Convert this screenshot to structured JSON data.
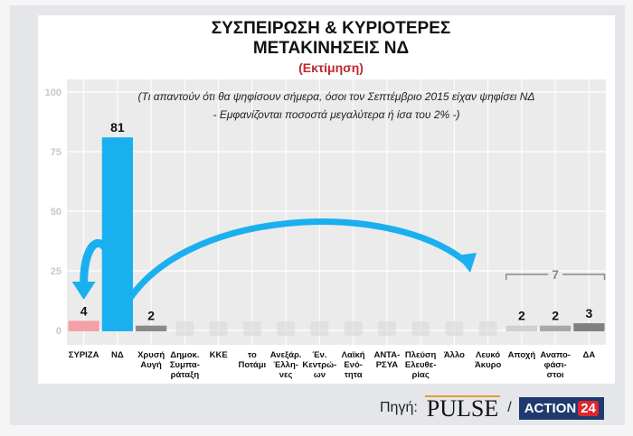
{
  "chart_data": {
    "type": "bar",
    "title": "ΣΥΣΠΕΙΡΩΣΗ & ΚΥΡΙΟΤΕΡΕΣ\nΜΕΤΑΚΙΝΗΣΕΙΣ ΝΔ",
    "title_lines": [
      "ΣΥΣΠΕΙΡΩΣΗ & ΚΥΡΙΟΤΕΡΕΣ",
      "ΜΕΤΑΚΙΝΗΣΕΙΣ ΝΔ"
    ],
    "subtitle": "(Εκτίμηση)",
    "note_lines": [
      "(Τι απαντούν ότι θα ψηφίσουν σήμερα, όσοι τον Σεπτέμβριο 2015 είχαν ψηφίσει ΝΔ",
      "- Εμφανίζονται ποσοστά μεγαλύτερα ή ίσα του 2% -)"
    ],
    "ylim": [
      0,
      100
    ],
    "yticks": [
      0,
      25,
      50,
      75,
      100
    ],
    "grid": true,
    "categories": [
      [
        "ΣΥΡΙΖΑ"
      ],
      [
        "ΝΔ"
      ],
      [
        "Χρυσή",
        "Αυγή"
      ],
      [
        "Δημοκ.",
        "Συμπα-",
        "ράταξη"
      ],
      [
        "ΚΚΕ"
      ],
      [
        "το",
        "Ποτάμι"
      ],
      [
        "Ανεξάρ.",
        "Έλλη-",
        "νες"
      ],
      [
        "Έν.",
        "Κεντρώ-",
        "ων"
      ],
      [
        "Λαϊκή",
        "Ενό-",
        "τητα"
      ],
      [
        "ΑΝΤΑ-",
        "ΡΣΥΑ"
      ],
      [
        "Πλεύση",
        "Ελευθε-",
        "ρίας"
      ],
      [
        "Άλλο"
      ],
      [
        "Λευκό",
        "Άκυρο"
      ],
      [
        "Αποχή"
      ],
      [
        "Αναπο-",
        "φάσι-",
        "στοι"
      ],
      [
        "ΔΑ"
      ]
    ],
    "values": [
      4,
      81,
      2,
      null,
      null,
      null,
      null,
      null,
      null,
      null,
      null,
      null,
      null,
      2,
      2,
      3
    ],
    "colors": [
      "#f4a0a8",
      "#1ab0f0",
      "#8a8a8a",
      "#ccc",
      "#ccc",
      "#ccc",
      "#ccc",
      "#ccc",
      "#ccc",
      "#ccc",
      "#ccc",
      "#ccc",
      "#ccc",
      "#d0d0d0",
      "#a8a8a8",
      "#808080"
    ],
    "group_annotation": {
      "label": "7",
      "categories": [
        "Αποχή",
        "Αναποφάσιστοι",
        "ΔΑ"
      ]
    }
  },
  "footer": {
    "source_label": "Πηγή:",
    "pulse": "PULSE",
    "separator": "/",
    "action": "ACTION",
    "action_num": "24"
  },
  "colors": {
    "accent": "#1ab0f0",
    "subtitle": "#c0282d"
  }
}
